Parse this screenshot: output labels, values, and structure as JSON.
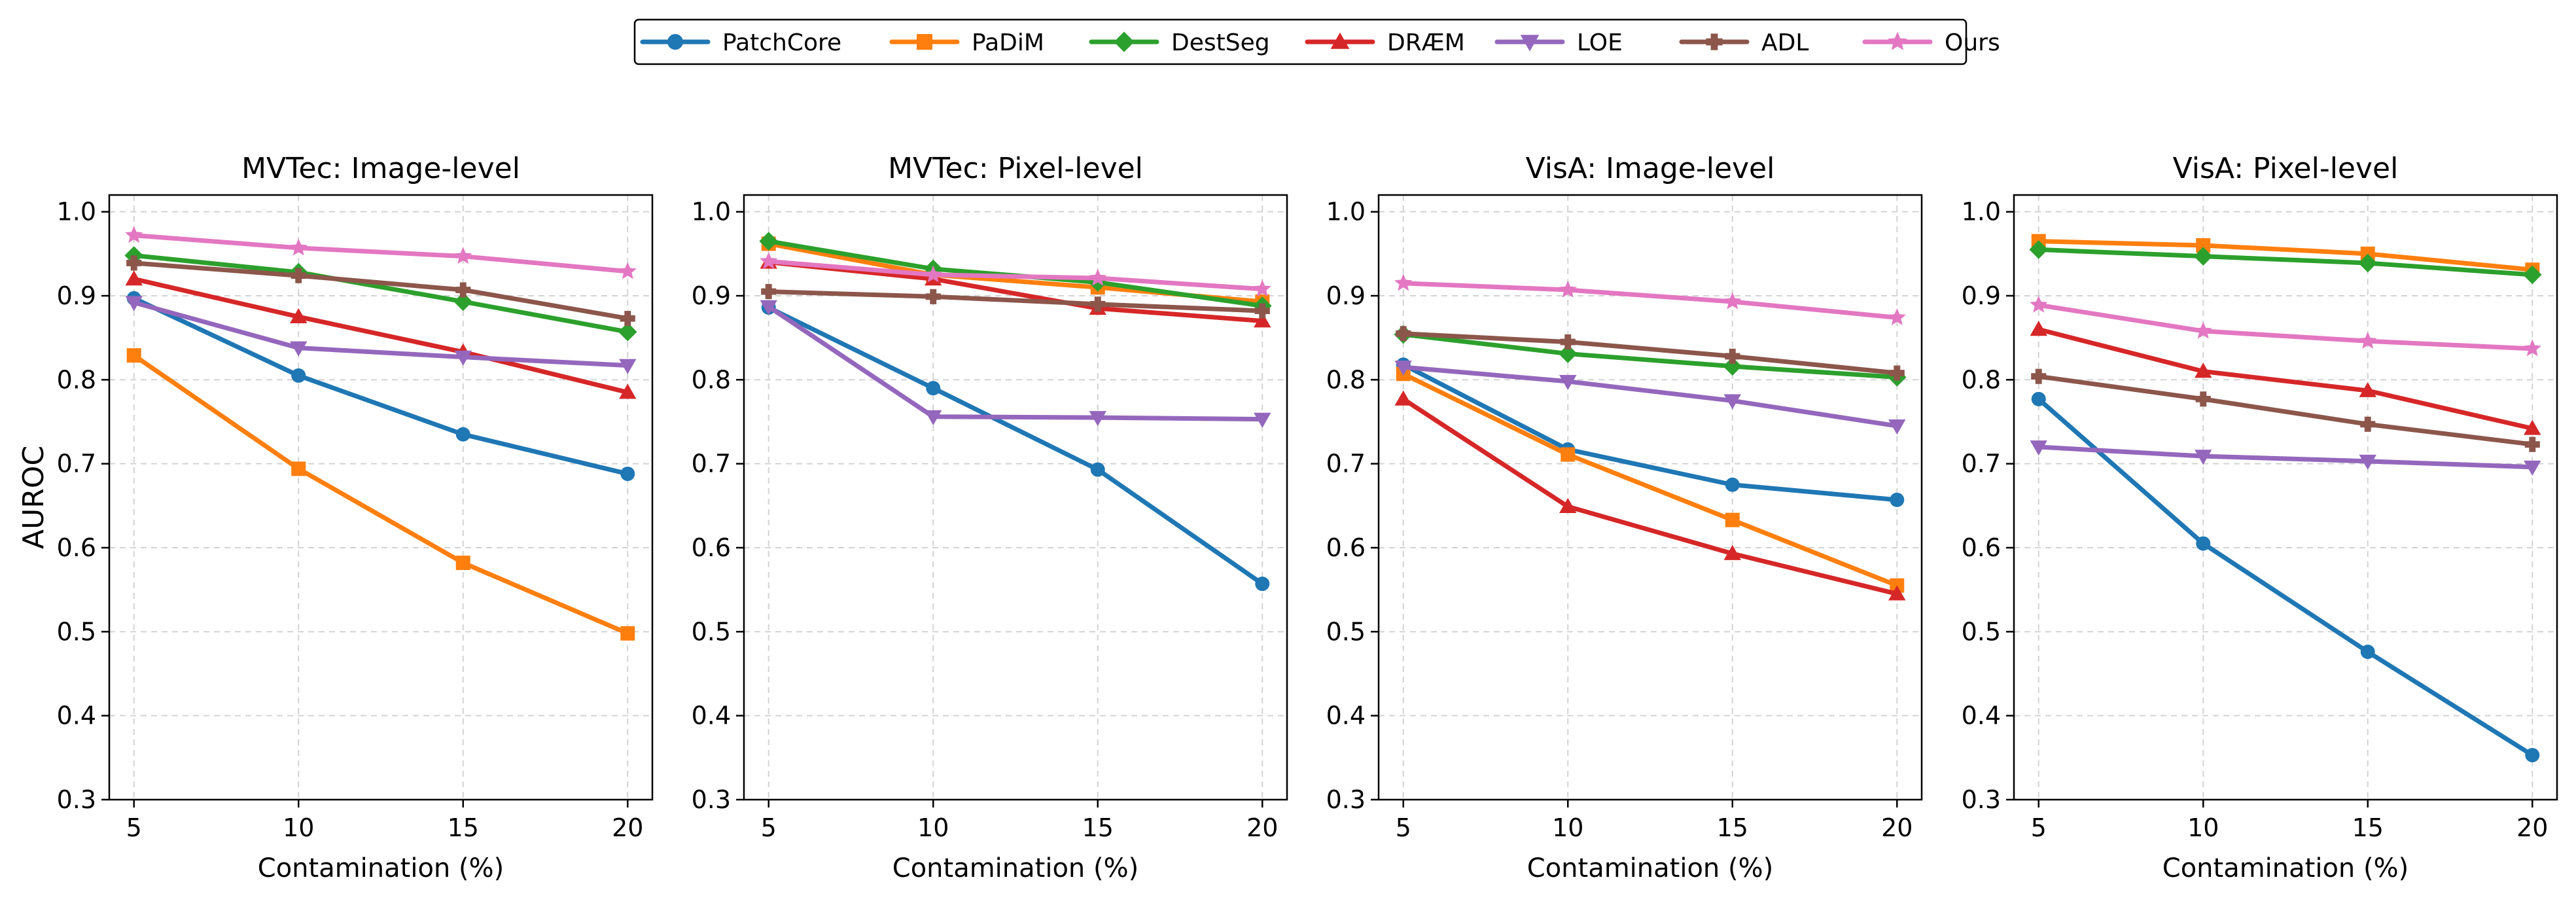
{
  "legend": {
    "items": [
      {
        "name": "PatchCore",
        "color": "#1f77b4",
        "marker": "circle"
      },
      {
        "name": "PaDiM",
        "color": "#ff7f0e",
        "marker": "square"
      },
      {
        "name": "DestSeg",
        "color": "#2ca02c",
        "marker": "diamond"
      },
      {
        "name": "DRÆM",
        "color": "#d62728",
        "marker": "triangle-up"
      },
      {
        "name": "LOE",
        "color": "#9467bd",
        "marker": "triangle-down"
      },
      {
        "name": "ADL",
        "color": "#8c564b",
        "marker": "plus"
      },
      {
        "name": "Ours",
        "color": "#e377c2",
        "marker": "star"
      }
    ]
  },
  "chart_data": [
    {
      "type": "line",
      "title": "MVTec: Image-level",
      "xlabel": "Contamination (%)",
      "ylabel": "AUROC",
      "x": [
        5,
        10,
        15,
        20
      ],
      "ylim": [
        0.3,
        1.0
      ],
      "yticks": [
        0.3,
        0.4,
        0.5,
        0.6,
        0.7,
        0.8,
        0.9,
        1.0
      ],
      "ytick_labels": [
        "0.3",
        "0.4",
        "0.5",
        "0.6",
        "0.7",
        "0.8",
        "0.9",
        "1.0"
      ],
      "xtick_labels": [
        "5",
        "10",
        "15",
        "20"
      ],
      "grid": true,
      "series": [
        {
          "name": "PatchCore",
          "values": [
            0.897,
            0.805,
            0.735,
            0.688
          ]
        },
        {
          "name": "PaDiM",
          "values": [
            0.829,
            0.694,
            0.582,
            0.498
          ]
        },
        {
          "name": "DestSeg",
          "values": [
            0.948,
            0.928,
            0.893,
            0.857
          ]
        },
        {
          "name": "DRÆM",
          "values": [
            0.92,
            0.875,
            0.833,
            0.785
          ]
        },
        {
          "name": "LOE",
          "values": [
            0.892,
            0.838,
            0.827,
            0.817
          ]
        },
        {
          "name": "ADL",
          "values": [
            0.939,
            0.924,
            0.907,
            0.873
          ]
        },
        {
          "name": "Ours",
          "values": [
            0.972,
            0.957,
            0.947,
            0.929
          ]
        }
      ]
    },
    {
      "type": "line",
      "title": "MVTec: Pixel-level",
      "xlabel": "Contamination (%)",
      "ylabel": "",
      "x": [
        5,
        10,
        15,
        20
      ],
      "ylim": [
        0.3,
        1.0
      ],
      "yticks": [
        0.3,
        0.4,
        0.5,
        0.6,
        0.7,
        0.8,
        0.9,
        1.0
      ],
      "ytick_labels": [
        "0.3",
        "0.4",
        "0.5",
        "0.6",
        "0.7",
        "0.8",
        "0.9",
        "1.0"
      ],
      "xtick_labels": [
        "5",
        "10",
        "15",
        "20"
      ],
      "grid": true,
      "series": [
        {
          "name": "PatchCore",
          "values": [
            0.886,
            0.79,
            0.693,
            0.557
          ]
        },
        {
          "name": "PaDiM",
          "values": [
            0.962,
            0.925,
            0.91,
            0.893
          ]
        },
        {
          "name": "DestSeg",
          "values": [
            0.965,
            0.932,
            0.916,
            0.888
          ]
        },
        {
          "name": "DRÆM",
          "values": [
            0.94,
            0.92,
            0.885,
            0.87
          ]
        },
        {
          "name": "LOE",
          "values": [
            0.887,
            0.756,
            0.755,
            0.753
          ]
        },
        {
          "name": "ADL",
          "values": [
            0.905,
            0.899,
            0.89,
            0.882
          ]
        },
        {
          "name": "Ours",
          "values": [
            0.941,
            0.925,
            0.921,
            0.908
          ]
        }
      ]
    },
    {
      "type": "line",
      "title": "VisA: Image-level",
      "xlabel": "Contamination (%)",
      "ylabel": "",
      "x": [
        5,
        10,
        15,
        20
      ],
      "ylim": [
        0.3,
        1.0
      ],
      "yticks": [
        0.3,
        0.4,
        0.5,
        0.6,
        0.7,
        0.8,
        0.9,
        1.0
      ],
      "ytick_labels": [
        "0.3",
        "0.4",
        "0.5",
        "0.6",
        "0.7",
        "0.8",
        "0.9",
        "1.0"
      ],
      "xtick_labels": [
        "5",
        "10",
        "15",
        "20"
      ],
      "grid": true,
      "series": [
        {
          "name": "PatchCore",
          "values": [
            0.818,
            0.717,
            0.675,
            0.657
          ]
        },
        {
          "name": "PaDiM",
          "values": [
            0.807,
            0.711,
            0.633,
            0.555
          ]
        },
        {
          "name": "DestSeg",
          "values": [
            0.854,
            0.831,
            0.816,
            0.803
          ]
        },
        {
          "name": "DRÆM",
          "values": [
            0.777,
            0.649,
            0.593,
            0.545
          ]
        },
        {
          "name": "LOE",
          "values": [
            0.815,
            0.798,
            0.775,
            0.745
          ]
        },
        {
          "name": "ADL",
          "values": [
            0.855,
            0.845,
            0.828,
            0.808
          ]
        },
        {
          "name": "Ours",
          "values": [
            0.915,
            0.907,
            0.893,
            0.874
          ]
        }
      ]
    },
    {
      "type": "line",
      "title": "VisA: Pixel-level",
      "xlabel": "Contamination (%)",
      "ylabel": "",
      "x": [
        5,
        10,
        15,
        20
      ],
      "ylim": [
        0.3,
        1.0
      ],
      "yticks": [
        0.3,
        0.4,
        0.5,
        0.6,
        0.7,
        0.8,
        0.9,
        1.0
      ],
      "ytick_labels": [
        "0.3",
        "0.4",
        "0.5",
        "0.6",
        "0.7",
        "0.8",
        "0.9",
        "1.0"
      ],
      "xtick_labels": [
        "5",
        "10",
        "15",
        "20"
      ],
      "grid": true,
      "series": [
        {
          "name": "PatchCore",
          "values": [
            0.777,
            0.605,
            0.476,
            0.353
          ]
        },
        {
          "name": "PaDiM",
          "values": [
            0.965,
            0.96,
            0.95,
            0.931
          ]
        },
        {
          "name": "DestSeg",
          "values": [
            0.955,
            0.947,
            0.939,
            0.925
          ]
        },
        {
          "name": "DRÆM",
          "values": [
            0.86,
            0.81,
            0.787,
            0.742
          ]
        },
        {
          "name": "LOE",
          "values": [
            0.72,
            0.709,
            0.703,
            0.696
          ]
        },
        {
          "name": "ADL",
          "values": [
            0.804,
            0.777,
            0.747,
            0.723
          ]
        },
        {
          "name": "Ours",
          "values": [
            0.889,
            0.858,
            0.846,
            0.837
          ]
        }
      ]
    }
  ]
}
